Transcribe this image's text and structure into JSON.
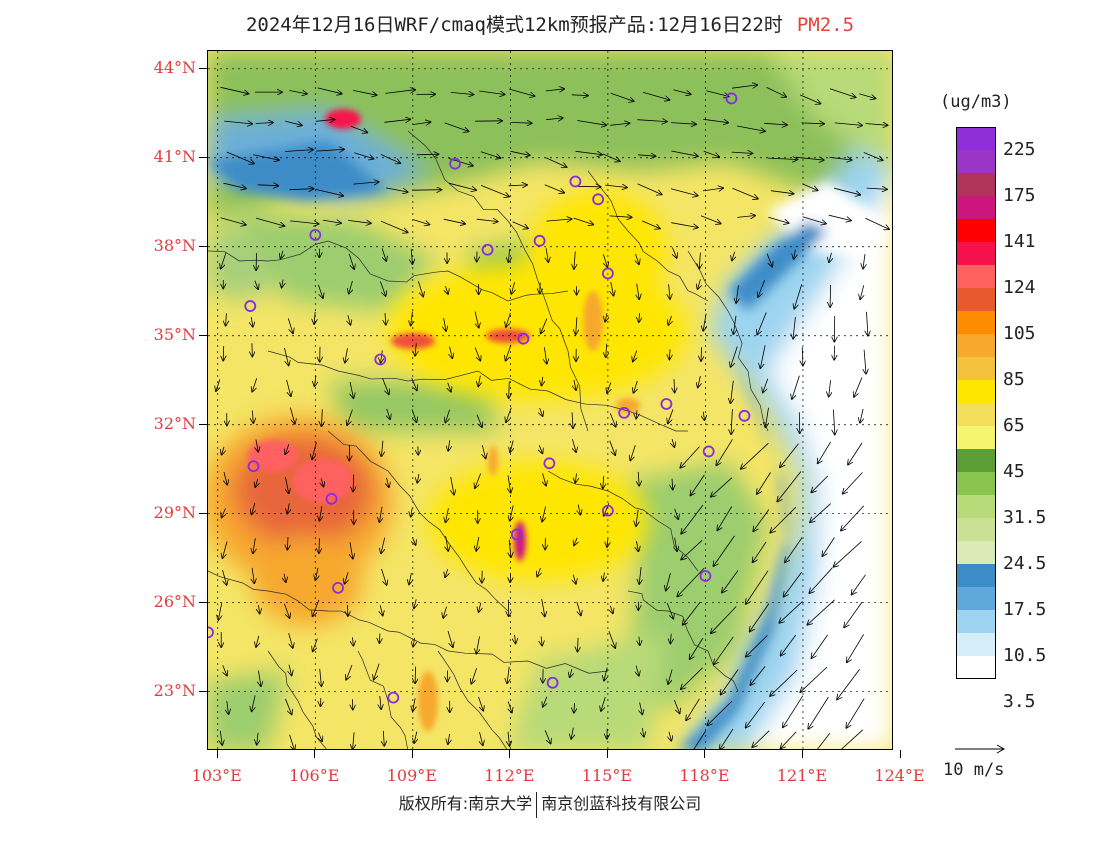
{
  "header": {
    "title": "2024年12月16日WRF/cmaq模式12km预报产品:12月16日22时",
    "variable": "PM2.5"
  },
  "map": {
    "lat_labels": [
      "44°N",
      "41°N",
      "38°N",
      "35°N",
      "32°N",
      "29°N",
      "26°N",
      "23°N"
    ],
    "lon_labels": [
      "103°E",
      "106°E",
      "109°E",
      "112°E",
      "115°E",
      "118°E",
      "121°E",
      "124°E"
    ],
    "lat_range": [
      21,
      44.6
    ],
    "lon_range": [
      102.7,
      123.8
    ]
  },
  "legend": {
    "unit": "(ug/m3)",
    "colors": [
      "#8f2fd9",
      "#9b35c8",
      "#b0345a",
      "#cc167f",
      "#ff0000",
      "#f5124c",
      "#ff6060",
      "#e85a2e",
      "#ff8c00",
      "#f7a82d",
      "#f5c23e",
      "#ffe600",
      "#f2de5a",
      "#f5f570",
      "#5a9e35",
      "#89c44e",
      "#b8da78",
      "#c9e095",
      "#dbeab7",
      "#3c8cc8",
      "#5fa8dc",
      "#9dd4f0",
      "#d6eefa",
      "#ffffff"
    ],
    "labels": [
      "225",
      "175",
      "141",
      "124",
      "105",
      "85",
      "65",
      "45",
      "31.5",
      "24.5",
      "17.5",
      "10.5",
      "3.5"
    ]
  },
  "wind": {
    "reference_label": "10 m/s"
  },
  "footer": {
    "copyright_left": "版权所有:南京大学",
    "copyright_right": "南京创蓝科技有限公司"
  },
  "cities": [
    {
      "lon": 118.8,
      "lat": 43.0
    },
    {
      "lon": 110.3,
      "lat": 40.8
    },
    {
      "lon": 114.0,
      "lat": 40.2
    },
    {
      "lon": 114.7,
      "lat": 39.6
    },
    {
      "lon": 106.0,
      "lat": 38.4
    },
    {
      "lon": 111.3,
      "lat": 37.9
    },
    {
      "lon": 112.9,
      "lat": 38.2
    },
    {
      "lon": 115.0,
      "lat": 37.1
    },
    {
      "lon": 104.0,
      "lat": 36.0
    },
    {
      "lon": 112.4,
      "lat": 34.9
    },
    {
      "lon": 108.0,
      "lat": 34.2
    },
    {
      "lon": 115.5,
      "lat": 32.4
    },
    {
      "lon": 116.8,
      "lat": 32.7
    },
    {
      "lon": 119.2,
      "lat": 32.3
    },
    {
      "lon": 118.1,
      "lat": 31.1
    },
    {
      "lon": 104.1,
      "lat": 30.6
    },
    {
      "lon": 113.2,
      "lat": 30.7
    },
    {
      "lon": 106.5,
      "lat": 29.5
    },
    {
      "lon": 115.0,
      "lat": 29.1
    },
    {
      "lon": 112.2,
      "lat": 28.3
    },
    {
      "lon": 106.7,
      "lat": 26.5
    },
    {
      "lon": 118.0,
      "lat": 26.9
    },
    {
      "lon": 102.7,
      "lat": 25.0
    },
    {
      "lon": 108.4,
      "lat": 22.8
    },
    {
      "lon": 113.3,
      "lat": 23.3
    }
  ]
}
